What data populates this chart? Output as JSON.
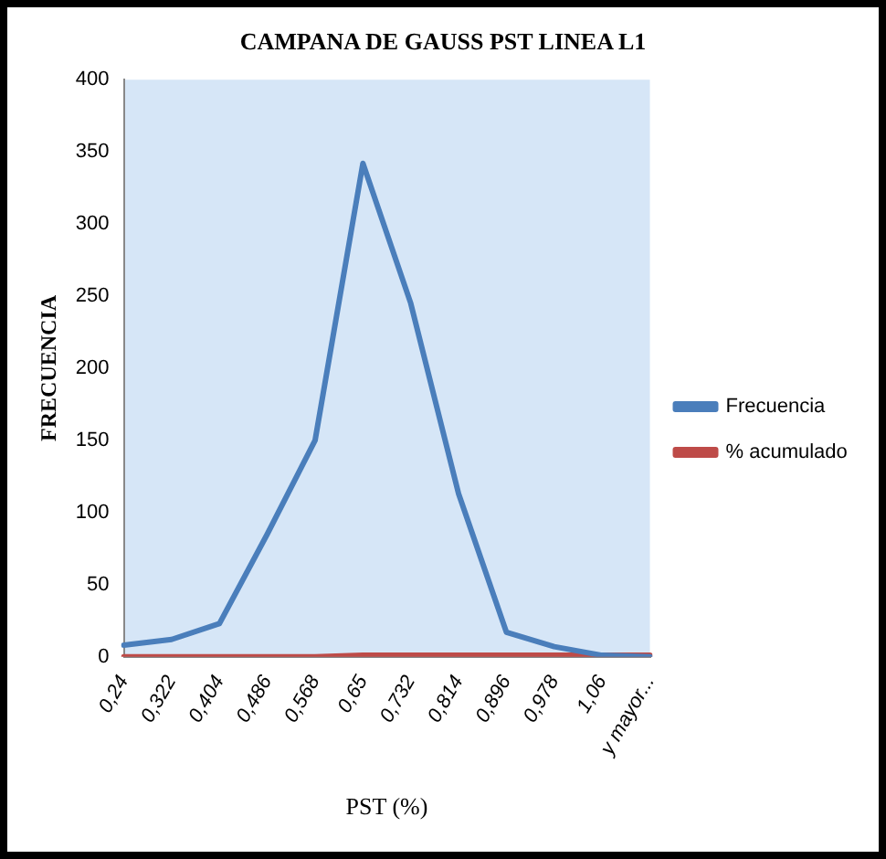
{
  "chart_data": {
    "type": "line",
    "title": "CAMPANA DE GAUSS PST LINEA L1",
    "xlabel": "PST (%)",
    "ylabel": "FRECUENCIA",
    "categories": [
      "0,24",
      "0,322",
      "0,404",
      "0,486",
      "0,568",
      "0,65",
      "0,732",
      "0,814",
      "0,896",
      "0,978",
      "1,06",
      "y mayor..."
    ],
    "series": [
      {
        "name": "Frecuencia",
        "color": "#4a7ebb",
        "values": [
          8,
          12,
          23,
          85,
          150,
          342,
          245,
          113,
          17,
          7,
          1,
          0
        ]
      },
      {
        "name": "% acumulado",
        "color": "#be4b48",
        "values": [
          0,
          0,
          0,
          0,
          0,
          1,
          1,
          1,
          1,
          1,
          1,
          1
        ]
      }
    ],
    "ylim": [
      0,
      400
    ],
    "yticks": [
      0,
      50,
      100,
      150,
      200,
      250,
      300,
      350,
      400
    ],
    "grid": false,
    "legend": "right",
    "marker": "none",
    "line_style": "solid"
  }
}
